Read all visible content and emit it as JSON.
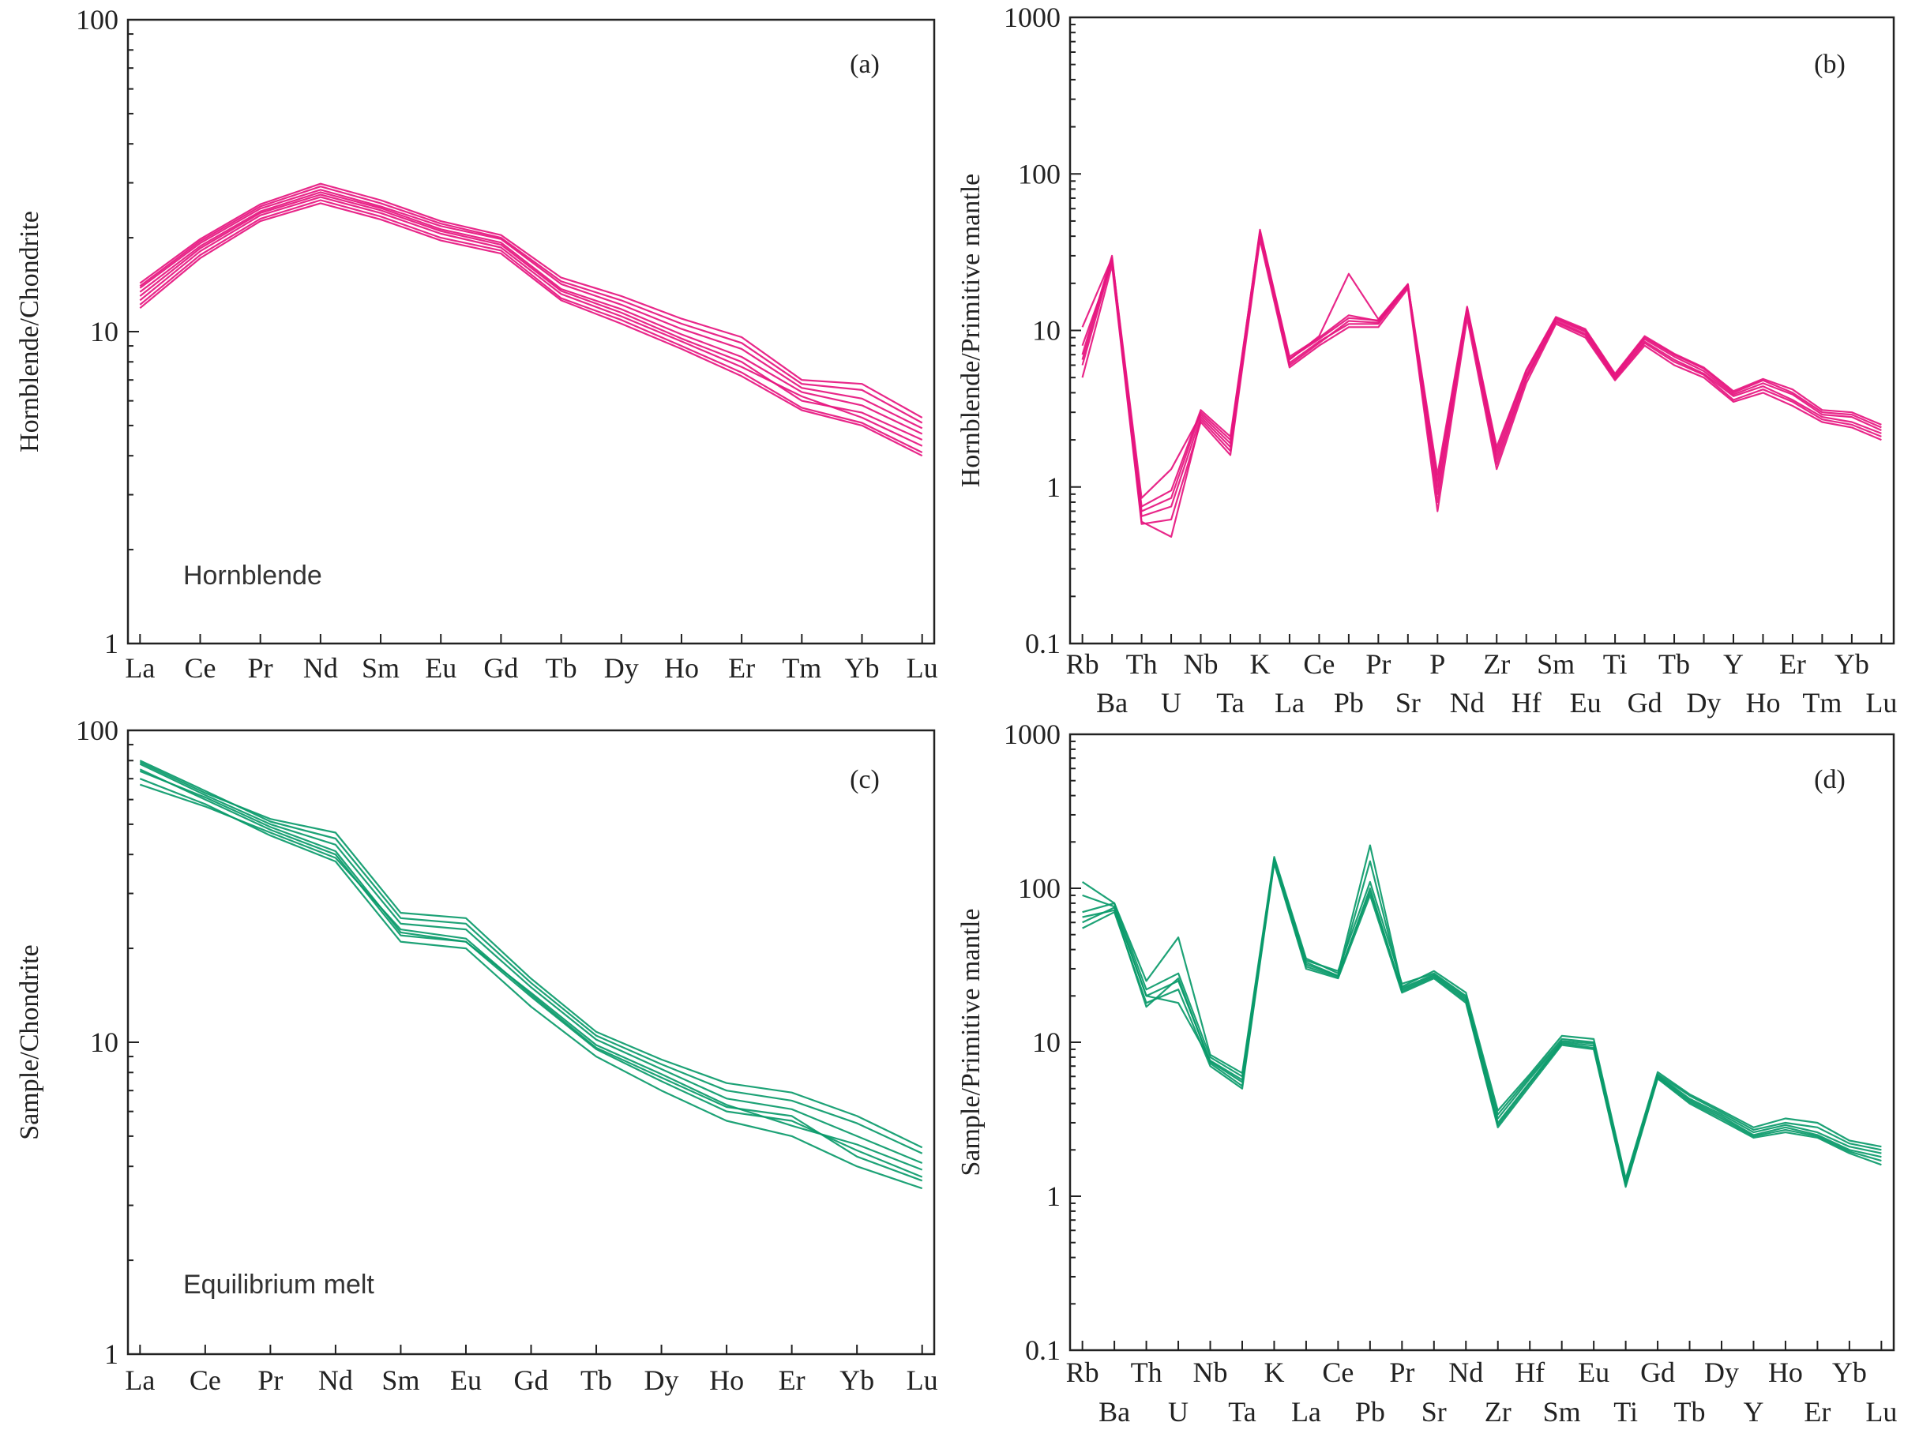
{
  "colors": {
    "hornblende": "#e6157f",
    "melt": "#0a9a6a",
    "axis": "#222222"
  },
  "chart_data": [
    {
      "id": "a",
      "type": "line",
      "panel_label": "(a)",
      "annotation": "Hornblende",
      "ylabel": "Hornblende/Chondrite",
      "yscale": "log",
      "ylim": [
        1,
        100
      ],
      "yticks": [
        {
          "v": 1,
          "label": "1"
        },
        {
          "v": 10,
          "label": "10"
        },
        {
          "v": 100,
          "label": "100"
        }
      ],
      "categories": [
        "La",
        "Ce",
        "Pr",
        "Nd",
        "Sm",
        "Eu",
        "Gd",
        "Tb",
        "Dy",
        "Ho",
        "Er",
        "Tm",
        "Yb",
        "Lu"
      ],
      "label_rows": [
        0,
        0,
        0,
        0,
        0,
        0,
        0,
        0,
        0,
        0,
        0,
        0,
        0,
        0
      ],
      "color_key": "hornblende",
      "series": [
        {
          "name": "s1",
          "values": [
            13.0,
            18.5,
            24.0,
            27.5,
            24.5,
            21.0,
            19.0,
            13.5,
            11.5,
            9.5,
            8.0,
            6.0,
            5.5,
            4.5
          ]
        },
        {
          "name": "s2",
          "values": [
            13.8,
            19.2,
            24.8,
            28.5,
            25.2,
            21.8,
            19.8,
            14.2,
            12.2,
            10.2,
            8.8,
            6.6,
            6.1,
            4.9
          ]
        },
        {
          "name": "s3",
          "values": [
            12.2,
            17.6,
            23.0,
            26.4,
            23.4,
            20.0,
            18.2,
            12.8,
            10.9,
            9.0,
            7.4,
            5.7,
            5.1,
            4.1
          ]
        },
        {
          "name": "s4",
          "values": [
            14.3,
            19.8,
            25.6,
            29.8,
            26.4,
            22.6,
            20.4,
            14.9,
            13.0,
            11.0,
            9.6,
            7.0,
            6.8,
            5.3
          ]
        },
        {
          "name": "s5",
          "values": [
            12.6,
            18.1,
            23.6,
            27.0,
            24.0,
            20.6,
            18.6,
            13.2,
            11.2,
            9.3,
            7.7,
            6.2,
            5.3,
            4.3
          ]
        },
        {
          "name": "s6",
          "values": [
            13.4,
            18.8,
            24.3,
            28.0,
            24.9,
            21.3,
            19.3,
            13.7,
            11.8,
            9.8,
            8.3,
            6.4,
            5.8,
            4.7
          ]
        },
        {
          "name": "s7",
          "values": [
            11.9,
            17.2,
            22.6,
            25.8,
            22.9,
            19.6,
            17.8,
            12.6,
            10.6,
            8.8,
            7.2,
            5.6,
            5.0,
            4.0
          ]
        },
        {
          "name": "s8",
          "values": [
            14.0,
            19.5,
            25.2,
            29.2,
            25.8,
            22.2,
            20.0,
            14.5,
            12.6,
            10.6,
            9.2,
            6.8,
            6.5,
            5.1
          ]
        }
      ]
    },
    {
      "id": "b",
      "type": "line",
      "panel_label": "(b)",
      "ylabel": "Hornblende/Primitive mantle",
      "yscale": "log",
      "ylim": [
        0.1,
        1000
      ],
      "yticks": [
        {
          "v": 0.1,
          "label": "0.1"
        },
        {
          "v": 1,
          "label": "1"
        },
        {
          "v": 10,
          "label": "10"
        },
        {
          "v": 100,
          "label": "100"
        },
        {
          "v": 1000,
          "label": "1000"
        }
      ],
      "categories": [
        "Rb",
        "Ba",
        "Th",
        "U",
        "Nb",
        "Ta",
        "K",
        "La",
        "Ce",
        "Pb",
        "Pr",
        "Sr",
        "P",
        "Nd",
        "Zr",
        "Hf",
        "Sm",
        "Eu",
        "Ti",
        "Gd",
        "Tb",
        "Dy",
        "Y",
        "Ho",
        "Er",
        "Tm",
        "Yb",
        "Lu"
      ],
      "label_rows": [
        0,
        1,
        0,
        1,
        0,
        1,
        0,
        1,
        0,
        1,
        0,
        1,
        0,
        1,
        0,
        1,
        0,
        1,
        0,
        1,
        0,
        1,
        0,
        1,
        0,
        1,
        0,
        1
      ],
      "color_key": "hornblende",
      "series": [
        {
          "name": "s1",
          "values": [
            6.0,
            28,
            0.65,
            0.75,
            2.8,
            1.8,
            40,
            6.2,
            8.5,
            11,
            11,
            19,
            0.9,
            13,
            1.5,
            5.0,
            11.5,
            9.5,
            5.0,
            8.5,
            6.5,
            5.3,
            3.8,
            4.4,
            3.6,
            2.8,
            2.6,
            2.2
          ]
        },
        {
          "name": "s2",
          "values": [
            7.0,
            30,
            0.7,
            0.85,
            3.0,
            2.0,
            44,
            6.8,
            9.0,
            12.5,
            11.5,
            19.5,
            1.1,
            14,
            1.7,
            5.5,
            12.0,
            10.0,
            5.2,
            9.0,
            7.0,
            5.7,
            4.0,
            4.8,
            4.0,
            3.0,
            2.9,
            2.4
          ]
        },
        {
          "name": "s3",
          "values": [
            5.0,
            26,
            0.58,
            0.62,
            2.6,
            1.6,
            38,
            5.8,
            8.0,
            10.5,
            10.5,
            18.5,
            0.7,
            12,
            1.3,
            4.6,
            11.0,
            9.0,
            4.8,
            8.0,
            6.0,
            5.0,
            3.5,
            4.0,
            3.3,
            2.6,
            2.4,
            2.0
          ]
        },
        {
          "name": "s4",
          "values": [
            10.5,
            29,
            0.85,
            1.3,
            2.9,
            1.9,
            42,
            6.5,
            9.2,
            23,
            11.8,
            19.8,
            1.0,
            13.5,
            1.6,
            5.2,
            11.8,
            9.8,
            5.1,
            8.8,
            6.8,
            5.5,
            3.9,
            4.6,
            3.9,
            2.9,
            2.8,
            2.3
          ]
        },
        {
          "name": "s5",
          "values": [
            8.0,
            27,
            0.6,
            0.48,
            2.7,
            1.7,
            41,
            6.0,
            8.3,
            11.5,
            11.2,
            19.2,
            0.8,
            13.2,
            1.4,
            4.9,
            11.3,
            9.3,
            4.9,
            8.3,
            6.3,
            5.2,
            3.6,
            4.2,
            3.5,
            2.7,
            2.5,
            2.1
          ]
        },
        {
          "name": "s6",
          "values": [
            6.5,
            29,
            0.75,
            0.95,
            3.1,
            2.1,
            43,
            6.6,
            8.8,
            12.0,
            11.6,
            19.6,
            1.2,
            14.2,
            1.8,
            5.6,
            12.2,
            10.2,
            5.3,
            9.2,
            7.1,
            5.8,
            4.1,
            4.9,
            4.2,
            3.1,
            3.0,
            2.5
          ]
        }
      ]
    },
    {
      "id": "c",
      "type": "line",
      "panel_label": "(c)",
      "annotation": "Equilibrium melt",
      "ylabel": "Sample/Chondrite",
      "yscale": "log",
      "ylim": [
        1,
        100
      ],
      "yticks": [
        {
          "v": 1,
          "label": "1"
        },
        {
          "v": 10,
          "label": "10"
        },
        {
          "v": 100,
          "label": "100"
        }
      ],
      "categories": [
        "La",
        "Ce",
        "Pr",
        "Nd",
        "Sm",
        "Eu",
        "Gd",
        "Tb",
        "Dy",
        "Ho",
        "Er",
        "Yb",
        "Lu"
      ],
      "label_rows": [
        0,
        0,
        0,
        0,
        0,
        0,
        0,
        0,
        0,
        0,
        0,
        0,
        0
      ],
      "color_key": "melt",
      "series": [
        {
          "name": "s1",
          "values": [
            75,
            60,
            48,
            40,
            22,
            21,
            14,
            9.5,
            7.5,
            6.0,
            5.6,
            4.5,
            3.7
          ]
        },
        {
          "name": "s2",
          "values": [
            80,
            64,
            51,
            45,
            25,
            24,
            15.5,
            10.5,
            8.5,
            7.0,
            6.5,
            5.5,
            4.4
          ]
        },
        {
          "name": "s3",
          "values": [
            70,
            58,
            46,
            38,
            21,
            20,
            13,
            9.0,
            7.0,
            5.6,
            5.0,
            4.0,
            3.4
          ]
        },
        {
          "name": "s4",
          "values": [
            78,
            62,
            50,
            43,
            24,
            23,
            15,
            10.2,
            8.2,
            6.6,
            6.1,
            5.0,
            4.1
          ]
        },
        {
          "name": "s5",
          "values": [
            67,
            57,
            47,
            39,
            23,
            21.5,
            14.2,
            9.6,
            7.7,
            6.2,
            5.8,
            4.3,
            3.6
          ]
        },
        {
          "name": "s6",
          "values": [
            79,
            63,
            52,
            47,
            26,
            25,
            16,
            10.8,
            8.8,
            7.4,
            6.9,
            5.8,
            4.6
          ]
        },
        {
          "name": "s7",
          "values": [
            74,
            61,
            49,
            41,
            22.5,
            21,
            14.4,
            9.8,
            7.9,
            6.3,
            5.4,
            4.7,
            3.9
          ]
        }
      ]
    },
    {
      "id": "d",
      "type": "line",
      "panel_label": "(d)",
      "ylabel": "Sample/Primitive mantle",
      "yscale": "log",
      "ylim": [
        0.1,
        1000
      ],
      "yticks": [
        {
          "v": 0.1,
          "label": "0.1"
        },
        {
          "v": 1,
          "label": "1"
        },
        {
          "v": 10,
          "label": "10"
        },
        {
          "v": 100,
          "label": "100"
        },
        {
          "v": 1000,
          "label": "1000"
        }
      ],
      "categories": [
        "Rb",
        "Ba",
        "Th",
        "U",
        "Nb",
        "Ta",
        "K",
        "La",
        "Ce",
        "Pb",
        "Pr",
        "Sr",
        "Nd",
        "Zr",
        "Hf",
        "Sm",
        "Eu",
        "Ti",
        "Gd",
        "Tb",
        "Dy",
        "Y",
        "Ho",
        "Er",
        "Yb",
        "Lu"
      ],
      "label_rows": [
        0,
        1,
        0,
        1,
        0,
        1,
        0,
        1,
        0,
        1,
        0,
        1,
        0,
        1,
        0,
        1,
        0,
        1,
        0,
        1,
        0,
        1,
        0,
        1,
        0,
        1
      ],
      "color_key": "melt",
      "series": [
        {
          "name": "s1",
          "values": [
            60,
            75,
            20,
            25,
            7.5,
            5.5,
            150,
            32,
            27,
            95,
            22,
            27,
            19,
            3.0,
            5.5,
            10,
            9.5,
            1.2,
            6.0,
            4.2,
            3.3,
            2.5,
            2.8,
            2.5,
            2.0,
            1.8
          ]
        },
        {
          "name": "s2",
          "values": [
            70,
            80,
            22,
            28,
            8.0,
            6.0,
            155,
            34,
            29,
            110,
            24,
            28,
            20,
            3.4,
            6.0,
            10.5,
            10.0,
            1.25,
            6.2,
            4.5,
            3.5,
            2.7,
            3.0,
            2.8,
            2.2,
            2.0
          ]
        },
        {
          "name": "s3",
          "values": [
            55,
            70,
            18,
            22,
            7.0,
            5.0,
            145,
            30,
            26,
            90,
            21,
            26,
            18,
            2.8,
            5.2,
            9.6,
            9.0,
            1.15,
            5.8,
            4.0,
            3.1,
            2.4,
            2.6,
            2.4,
            1.9,
            1.6
          ]
        },
        {
          "name": "s4",
          "values": [
            110,
            80,
            25,
            48,
            8.3,
            6.3,
            160,
            35,
            28,
            190,
            23,
            29,
            21,
            3.6,
            6.2,
            11,
            10.5,
            1.3,
            6.4,
            4.6,
            3.6,
            2.8,
            3.2,
            3.0,
            2.3,
            2.1
          ]
        },
        {
          "name": "s5",
          "values": [
            90,
            76,
            20,
            18,
            7.6,
            5.7,
            152,
            33,
            27,
            150,
            22.5,
            27.5,
            19.5,
            3.2,
            5.8,
            10.2,
            9.8,
            1.22,
            6.1,
            4.3,
            3.4,
            2.6,
            2.9,
            2.6,
            2.1,
            1.9
          ]
        },
        {
          "name": "s6",
          "values": [
            65,
            72,
            17,
            26,
            7.3,
            5.2,
            148,
            31,
            26.5,
            100,
            21.5,
            26.5,
            18.5,
            2.9,
            5.4,
            9.8,
            9.2,
            1.18,
            5.9,
            4.1,
            3.2,
            2.45,
            2.7,
            2.45,
            1.95,
            1.7
          ]
        }
      ]
    }
  ]
}
